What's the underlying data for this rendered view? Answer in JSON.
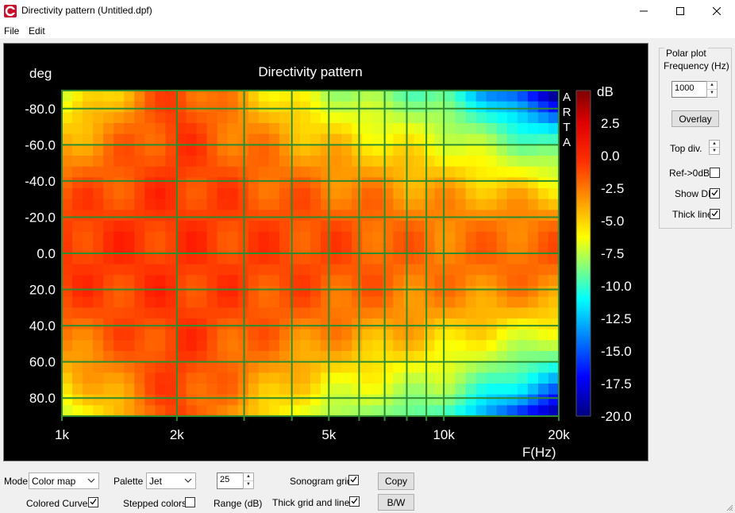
{
  "window": {
    "title": "Directivity pattern (Untitled.dpf)",
    "icon": "arta-app-icon",
    "controls": [
      "minimize-icon",
      "maximize-icon",
      "close-icon"
    ]
  },
  "menu": {
    "file": "File",
    "edit": "Edit"
  },
  "chart_data": {
    "type": "heatmap",
    "title": "Directivity pattern",
    "xlabel": "F(Hz)",
    "ylabel": "deg",
    "x_scale": "log",
    "xlim": [
      1000,
      20000
    ],
    "ylim": [
      -90,
      90
    ],
    "x_ticks": [
      {
        "value": 1000,
        "label": "1k"
      },
      {
        "value": 2000,
        "label": "2k"
      },
      {
        "value": 5000,
        "label": "5k"
      },
      {
        "value": 10000,
        "label": "10k"
      },
      {
        "value": 20000,
        "label": "20k"
      }
    ],
    "y_ticks": [
      {
        "value": -80,
        "label": "-80.0"
      },
      {
        "value": -60,
        "label": "-60.0"
      },
      {
        "value": -40,
        "label": "-40.0"
      },
      {
        "value": -20,
        "label": "-20.0"
      },
      {
        "value": 0,
        "label": "0.0"
      },
      {
        "value": 20,
        "label": "20.0"
      },
      {
        "value": 40,
        "label": "40.0"
      },
      {
        "value": 60,
        "label": "60.0"
      },
      {
        "value": 80,
        "label": "80.0"
      }
    ],
    "x_gridlines": [
      1000,
      2000,
      3000,
      4000,
      5000,
      6000,
      7000,
      8000,
      9000,
      10000,
      20000
    ],
    "grid": true,
    "grid_color": "#2e8b2e",
    "watermark": "ARTA",
    "colorbar": {
      "label": "dB",
      "range": [
        -20,
        5
      ],
      "ticks": [
        "2.5",
        "0.0",
        "-2.5",
        "-5.0",
        "-7.5",
        "-10.0",
        "-12.5",
        "-15.0",
        "-17.5",
        "-20.0"
      ],
      "tick_values": [
        2.5,
        0,
        -2.5,
        -5,
        -7.5,
        -10,
        -12.5,
        -15,
        -17.5,
        -20
      ],
      "palette": "Jet"
    },
    "description_levels": [
      {
        "freq": 1000,
        "off_axis_80_db": -4.5,
        "on_axis_db": 0.5
      },
      {
        "freq": 2000,
        "off_axis_80_db": 0.5,
        "on_axis_db": 0.5
      },
      {
        "freq": 5000,
        "off_axis_80_db": -5,
        "on_axis_db": 0
      },
      {
        "freq": 10000,
        "off_axis_80_db": -7.5,
        "on_axis_db": -1
      },
      {
        "freq": 20000,
        "off_axis_80_db": -16,
        "on_axis_db": -0.5
      }
    ]
  },
  "sidebar": {
    "group_label": "Polar plot",
    "frequency_label": "Frequency (Hz)",
    "frequency_value": "1000",
    "overlay_button": "Overlay",
    "top_div_label": "Top div.",
    "ref_label": "Ref->0dB",
    "ref_checked": false,
    "show_di_label": "Show DI",
    "show_di_checked": true,
    "thick_line_label": "Thick line",
    "thick_line_checked": true
  },
  "bottom": {
    "mode_label": "Mode",
    "mode_value": "Color map",
    "palette_label": "Palette",
    "palette_value": "Jet",
    "range_value": "25",
    "range_label": "Range (dB)",
    "sonogram_grid_label": "Sonogram grid",
    "sonogram_grid_checked": true,
    "copy_button": "Copy",
    "colored_curves_label": "Colored Curves",
    "colored_curves_checked": true,
    "stepped_colors_label": "Stepped colors",
    "stepped_colors_checked": false,
    "thick_grid_label": "Thick grid and  lines",
    "thick_grid_checked": true,
    "bw_button": "B/W"
  },
  "colors": {
    "plot_background": "#000000",
    "axis_text": "#ffffff",
    "window_background": "#f0f0f0"
  }
}
